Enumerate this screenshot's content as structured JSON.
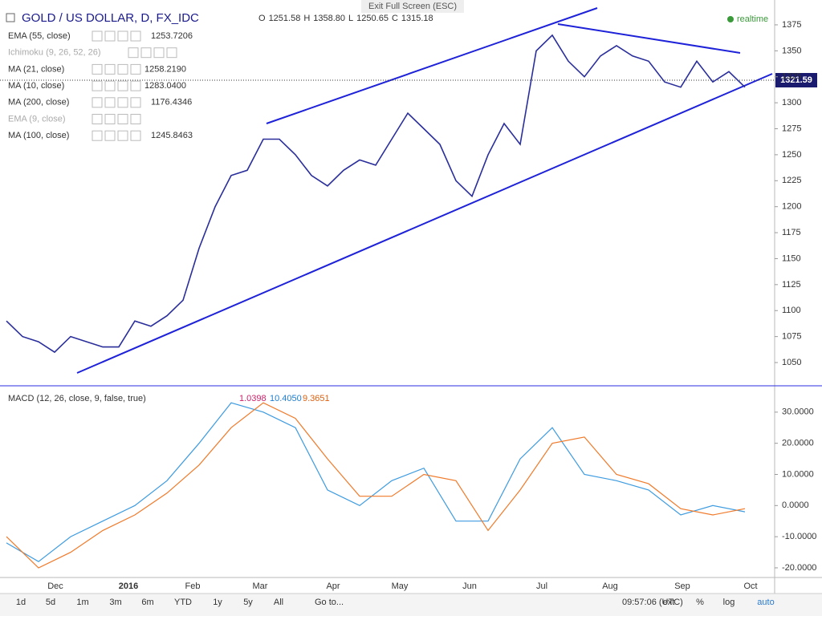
{
  "header": {
    "symbol": "GOLD / US DOLLAR, D, FX_IDC",
    "ohlc": [
      "O",
      "1251.58",
      "H",
      "1358.80",
      "L",
      "1250.65",
      "C",
      "1315.18"
    ],
    "exit": "Exit Full Screen (ESC)",
    "realtime": "realtime"
  },
  "indicators": [
    {
      "name": "EMA (55, close)",
      "value": "1253.7206"
    },
    {
      "name": "Ichimoku (9, 26, 52, 26)",
      "value": null
    },
    {
      "name": "MA (21, close)",
      "value": "1258.2190"
    },
    {
      "name": "MA (10, close)",
      "value": "1283.0400"
    },
    {
      "name": "MA (200, close)",
      "value": "1176.4346"
    },
    {
      "name": "EMA (9, close)",
      "value": null
    },
    {
      "name": "MA (100, close)",
      "value": "1245.8463"
    }
  ],
  "price_label": "1321.59",
  "macd_legend": {
    "name": "MACD (12, 26, close, 9, false, true)",
    "values": [
      "1.0398",
      "10.4050",
      "9.3651"
    ]
  },
  "chart_data": [
    {
      "type": "line",
      "ylim": [
        1028.4,
        1398.9
      ],
      "yticks": [
        1050,
        1075,
        1100,
        1125,
        1150,
        1175,
        1200,
        1225,
        1250,
        1275,
        1300,
        1325,
        1350,
        1375
      ],
      "series": [
        {
          "color": "#2a2e9b",
          "values": [
            1090,
            1075,
            1070,
            1060,
            1075,
            1070,
            1065,
            1065,
            1090,
            1085,
            1095,
            1110,
            1160,
            1200,
            1230,
            1235,
            1265,
            1265,
            1250,
            1230,
            1220,
            1235,
            1245,
            1240,
            1265,
            1290,
            1275,
            1260,
            1225,
            1210,
            1250,
            1280,
            1260,
            1350,
            1365,
            1340,
            1325,
            1345,
            1355,
            1345,
            1340,
            1320,
            1315,
            1340,
            1320,
            1330,
            1315
          ]
        }
      ]
    },
    {
      "type": "line",
      "ylim": [
        -23.1,
        38.2
      ],
      "yticks": [
        {
          "value": 30,
          "label": "30.0000"
        },
        {
          "value": 20,
          "label": "20.0000"
        },
        {
          "value": 10,
          "label": "10.0000"
        },
        {
          "value": 0,
          "label": "0.0000"
        },
        {
          "value": -10,
          "label": "-10.0000"
        },
        {
          "value": -20,
          "label": "-20.0000"
        }
      ],
      "series": [
        {
          "color": "#3d9be0",
          "values": [
            -12,
            -18,
            -10,
            -5,
            0,
            8,
            20,
            33,
            30,
            25,
            5,
            0,
            8,
            12,
            -5,
            -5,
            15,
            25,
            10,
            8,
            5,
            -3,
            0,
            -2
          ]
        },
        {
          "color": "#f07a2a",
          "values": [
            -10,
            -20,
            -15,
            -8,
            -3,
            4,
            13,
            25,
            33,
            28,
            15,
            3,
            3,
            10,
            8,
            -8,
            5,
            20,
            22,
            10,
            7,
            -1,
            -3,
            -1
          ]
        }
      ]
    }
  ],
  "time_axis": [
    "Dec",
    "2016",
    "Feb",
    "Mar",
    "Apr",
    "May",
    "Jun",
    "Jul",
    "Aug",
    "Sep",
    "Oct"
  ],
  "toolbar": {
    "ranges": [
      "1d",
      "5d",
      "1m",
      "3m",
      "6m",
      "YTD",
      "1y",
      "5y",
      "All",
      "Go to..."
    ],
    "clock": "09:57:06 (UTC)",
    "right": [
      "ext",
      "%",
      "log",
      "auto"
    ]
  }
}
